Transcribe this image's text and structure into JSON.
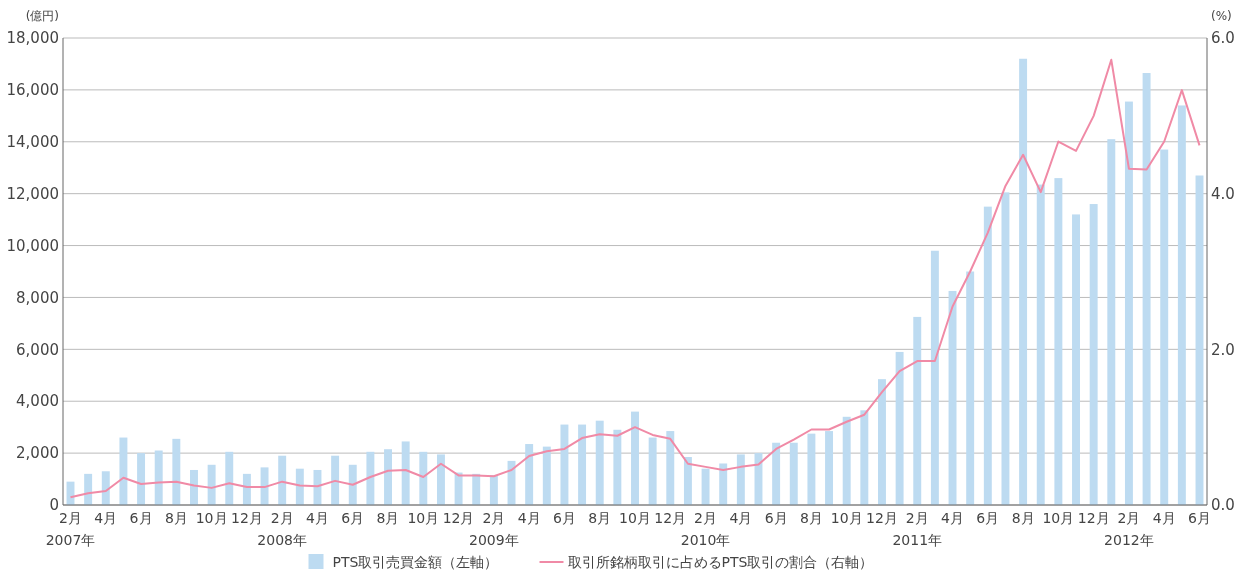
{
  "chart_data": {
    "type": "bar",
    "ylabel": "(億円)",
    "y2label": "(%)",
    "categories": [
      "2月\n2007年",
      null,
      "4月",
      null,
      "6月",
      null,
      "8月",
      null,
      "10月",
      null,
      "12月",
      null,
      "2月\n2008年",
      null,
      "4月",
      null,
      "6月",
      null,
      "8月",
      null,
      "10月",
      null,
      "12月",
      null,
      "2月\n2009年",
      null,
      "4月",
      null,
      "6月",
      null,
      "8月",
      null,
      "10月",
      null,
      "12月",
      null,
      "2月\n2010年",
      null,
      "4月",
      null,
      "6月",
      null,
      "8月",
      null,
      "10月",
      null,
      "12月",
      null,
      "2月\n2011年",
      null,
      "4月",
      null,
      "6月",
      null,
      "8月",
      null,
      "10月",
      null,
      "12月",
      null,
      "2月\n2012年",
      null,
      "4月",
      null,
      "6月"
    ],
    "series": [
      {
        "name": "PTS取引売買金額（左軸）",
        "color": "#bddbf1",
        "values": [
          900,
          1200,
          1300,
          2600,
          2000,
          2100,
          2550,
          1350,
          1550,
          2050,
          1200,
          1450,
          1900,
          1400,
          1350,
          1900,
          1550,
          2050,
          2150,
          2450,
          2050,
          1950,
          1250,
          1200,
          1150,
          1700,
          2350,
          2250,
          3100,
          3100,
          3250,
          2900,
          3600,
          2600,
          2850,
          1850,
          1400,
          1600,
          1950,
          2000,
          2400,
          2400,
          2750,
          2850,
          3400,
          3650,
          4850,
          5900,
          7250,
          9800,
          8250,
          9000,
          11500,
          12050,
          17200,
          12350,
          12600,
          11200,
          11600,
          14100,
          15550,
          16650,
          13700,
          15400,
          12700
        ]
      },
      {
        "name": "取引所銘柄取引に占めるPTS取引の割合（右軸）",
        "type": "line",
        "axis": "y2",
        "color": "#f08aa6",
        "values": [
          0.1,
          0.15,
          0.18,
          0.35,
          0.27,
          0.29,
          0.3,
          0.25,
          0.22,
          0.28,
          0.23,
          0.23,
          0.3,
          0.25,
          0.24,
          0.31,
          0.26,
          0.36,
          0.44,
          0.45,
          0.36,
          0.53,
          0.38,
          0.38,
          0.37,
          0.45,
          0.63,
          0.69,
          0.72,
          0.86,
          0.91,
          0.89,
          1.0,
          0.9,
          0.85,
          0.53,
          0.49,
          0.45,
          0.49,
          0.52,
          0.72,
          0.84,
          0.97,
          0.97,
          1.07,
          1.16,
          1.45,
          1.72,
          1.85,
          1.85,
          2.55,
          3.0,
          3.5,
          4.1,
          4.5,
          4.02,
          4.67,
          4.55,
          5.0,
          5.72,
          4.32,
          4.31,
          4.67,
          5.33,
          4.62
        ]
      }
    ],
    "ylim": [
      0,
      18000
    ],
    "yticks": [
      {
        "value": 0,
        "label": "0"
      },
      {
        "value": 2000,
        "label": "2,000"
      },
      {
        "value": 4000,
        "label": "4,000"
      },
      {
        "value": 6000,
        "label": "6,000"
      },
      {
        "value": 8000,
        "label": "8,000"
      },
      {
        "value": 10000,
        "label": "10,000"
      },
      {
        "value": 12000,
        "label": "12,000"
      },
      {
        "value": 14000,
        "label": "14,000"
      },
      {
        "value": 16000,
        "label": "16,000"
      },
      {
        "value": 18000,
        "label": "18,000"
      }
    ],
    "y2lim": [
      0,
      6
    ],
    "y2ticks": [
      {
        "value": 0,
        "label": "0.0"
      },
      {
        "value": 2,
        "label": "2.0"
      },
      {
        "value": 4,
        "label": "4.0"
      },
      {
        "value": 6,
        "label": "6.0"
      }
    ],
    "grid": "y",
    "legend": "bottom",
    "marker": "none",
    "line_style": "solid"
  }
}
